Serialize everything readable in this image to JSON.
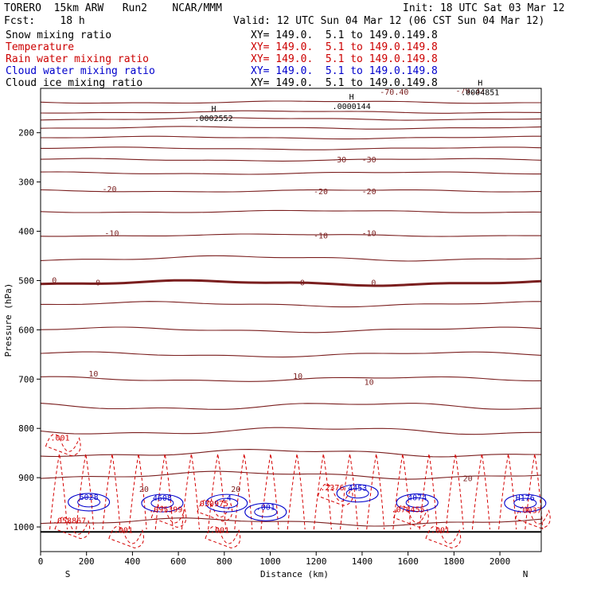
{
  "header": {
    "model": "TORERO  15km ARW   Run2    NCAR/MMM",
    "init": "Init: 18 UTC Sat 03 Mar 12",
    "fcst": "Fcst:    18 h",
    "valid": "Valid: 12 UTC Sun 04 Mar 12 (06 CST Sun 04 Mar 12)"
  },
  "legend": [
    {
      "name": "Snow mixing ratio",
      "xy": "XY= 149.0.  5.1 to 149.0.149.8",
      "color": "#000000"
    },
    {
      "name": "Temperature",
      "xy": "XY= 149.0.  5.1 to 149.0.149.8",
      "color": "#cc0000"
    },
    {
      "name": "Rain water mixing ratio",
      "xy": "XY= 149.0.  5.1 to 149.0.149.8",
      "color": "#cc0000"
    },
    {
      "name": "Cloud water mixing ratio",
      "xy": "XY= 149.0.  5.1 to 149.0.149.8",
      "color": "#0000cc"
    },
    {
      "name": "Cloud ice mixing ratio",
      "xy": "XY= 149.0.  5.1 to 149.0.149.8",
      "color": "#000000"
    }
  ],
  "chart_data": {
    "type": "contour-cross-section",
    "xlabel": "Distance (km)",
    "ylabel": "Pressure (hPa)",
    "xlim": [
      0,
      2180
    ],
    "ylim": [
      1050,
      110
    ],
    "xticks": [
      0,
      200,
      400,
      600,
      800,
      1000,
      1200,
      1400,
      1600,
      1800,
      2000
    ],
    "yticks": [
      200,
      300,
      400,
      500,
      600,
      700,
      800,
      900,
      1000
    ],
    "direction_labels": {
      "left": "S",
      "right": "N"
    },
    "ice_maxima": [
      {
        "x": 740,
        "p": 176,
        "label": ".0002552"
      },
      {
        "x": 1340,
        "p": 152,
        "label": ".0000144"
      },
      {
        "x": 1900,
        "p": 124,
        "label": ".0004851"
      }
    ],
    "temperature_labels": [
      {
        "x": 1870,
        "p": 116,
        "text": "-79.32"
      },
      {
        "x": 1540,
        "p": 118,
        "text": "-70.40"
      },
      {
        "x": 1300,
        "p": 255,
        "text": "-30"
      },
      {
        "x": 1430,
        "p": 255,
        "text": "-30"
      },
      {
        "x": 300,
        "p": 315,
        "text": "-20"
      },
      {
        "x": 1220,
        "p": 320,
        "text": "-20"
      },
      {
        "x": 1430,
        "p": 320,
        "text": "-20"
      },
      {
        "x": 310,
        "p": 405,
        "text": "-10"
      },
      {
        "x": 1220,
        "p": 410,
        "text": "-10"
      },
      {
        "x": 1430,
        "p": 405,
        "text": "-10"
      },
      {
        "x": 60,
        "p": 500,
        "text": "0"
      },
      {
        "x": 250,
        "p": 505,
        "text": "0"
      },
      {
        "x": 1140,
        "p": 505,
        "text": "0"
      },
      {
        "x": 1450,
        "p": 505,
        "text": "0"
      },
      {
        "x": 230,
        "p": 690,
        "text": "10"
      },
      {
        "x": 1120,
        "p": 695,
        "text": "10"
      },
      {
        "x": 1430,
        "p": 707,
        "text": "10"
      },
      {
        "x": 450,
        "p": 924,
        "text": "20"
      },
      {
        "x": 850,
        "p": 924,
        "text": "20"
      },
      {
        "x": 1860,
        "p": 902,
        "text": "20"
      }
    ],
    "rain_labels": [
      {
        "x": 85,
        "p": 820,
        "text": ".001"
      },
      {
        "x": 360,
        "p": 1007,
        "text": ".001"
      },
      {
        "x": 780,
        "p": 1007,
        "text": ".001"
      },
      {
        "x": 1740,
        "p": 1007,
        "text": ".001"
      },
      {
        "x": 125,
        "p": 988,
        "text": ".058867"
      },
      {
        "x": 545,
        "p": 965,
        "text": ".095399"
      },
      {
        "x": 745,
        "p": 953,
        "text": ".030975"
      },
      {
        "x": 1270,
        "p": 921,
        "text": ".2376"
      },
      {
        "x": 1600,
        "p": 965,
        "text": ".078455"
      },
      {
        "x": 2130,
        "p": 967,
        "text": ".0037"
      }
    ],
    "cloud_labels": [
      {
        "x": 210,
        "p": 940,
        "text": "6028"
      },
      {
        "x": 530,
        "p": 942,
        "text": "4608"
      },
      {
        "x": 810,
        "p": 942,
        "text": ".4"
      },
      {
        "x": 980,
        "p": 960,
        "text": ".001"
      },
      {
        "x": 1380,
        "p": 922,
        "text": "4453"
      },
      {
        "x": 1640,
        "p": 941,
        "text": "4074"
      },
      {
        "x": 2110,
        "p": 942,
        "text": "H176"
      }
    ]
  }
}
